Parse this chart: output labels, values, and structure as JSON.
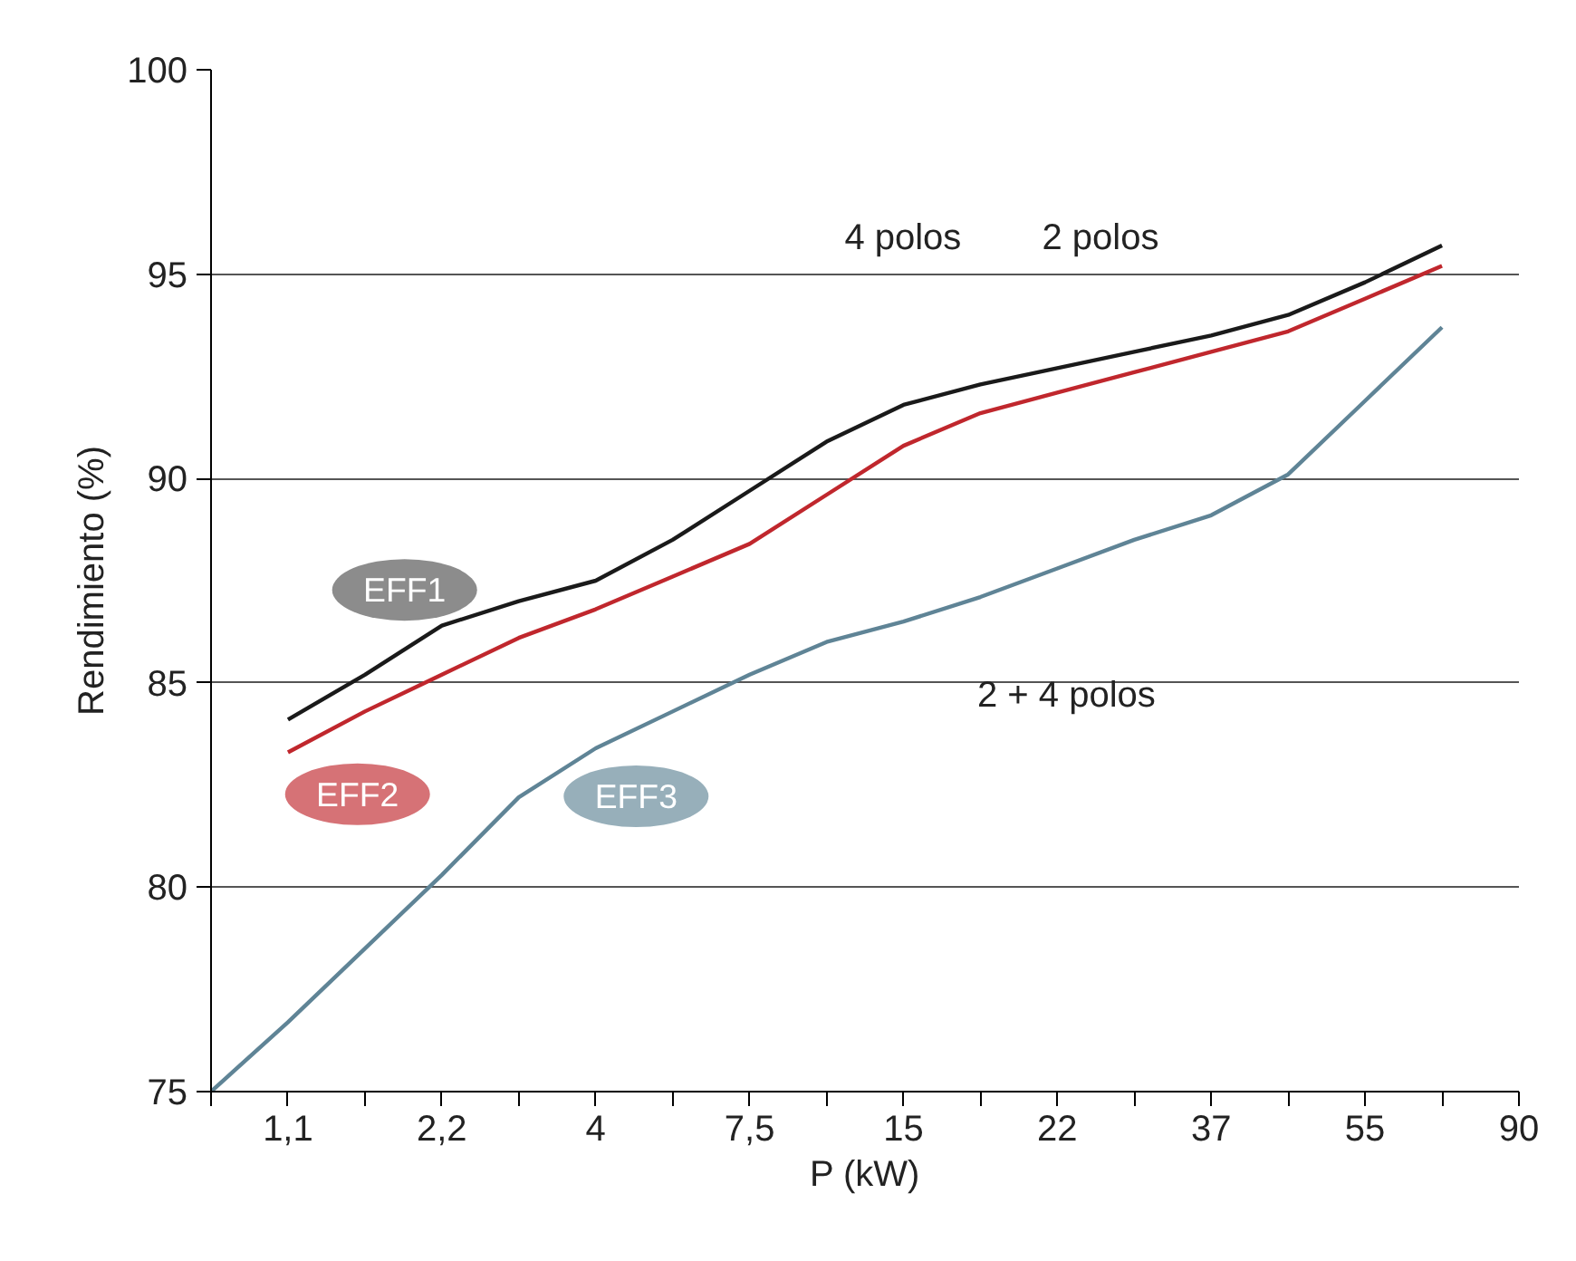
{
  "chart_data": {
    "type": "line",
    "xlabel": "P (kW)",
    "ylabel": "Rendimiento (%)",
    "categories": [
      null,
      "1,1",
      null,
      "2,2",
      null,
      "4",
      null,
      "7,5",
      null,
      "15",
      null,
      "22",
      null,
      "37",
      null,
      "55",
      null,
      "90"
    ],
    "ylim": [
      75,
      100
    ],
    "yticks": [
      75,
      80,
      85,
      90,
      95,
      100
    ],
    "grid": "y",
    "marker": "none",
    "line_style": "solid",
    "series": [
      {
        "color": "#1a1a1a",
        "values": [
          null,
          84.1,
          85.2,
          86.4,
          87.0,
          87.5,
          88.5,
          89.7,
          90.9,
          91.8,
          92.3,
          92.7,
          93.1,
          93.5,
          94.0,
          94.8,
          95.7,
          null
        ]
      },
      {
        "color": "#c0272d",
        "values": [
          null,
          83.3,
          84.3,
          85.2,
          86.1,
          86.8,
          87.6,
          88.4,
          89.6,
          90.8,
          91.6,
          92.1,
          92.6,
          93.1,
          93.6,
          94.4,
          95.2,
          null
        ]
      },
      {
        "color": "#5f8496",
        "values": [
          75.0,
          76.7,
          78.5,
          80.3,
          82.2,
          83.4,
          84.3,
          85.2,
          86.0,
          86.5,
          87.1,
          87.8,
          88.5,
          89.1,
          90.1,
          91.9,
          93.7,
          null
        ]
      }
    ],
    "annotations": [
      "EFF1",
      "EFF2",
      "EFF3",
      "4 polos",
      "2 polos",
      "2 + 4 polos"
    ]
  }
}
